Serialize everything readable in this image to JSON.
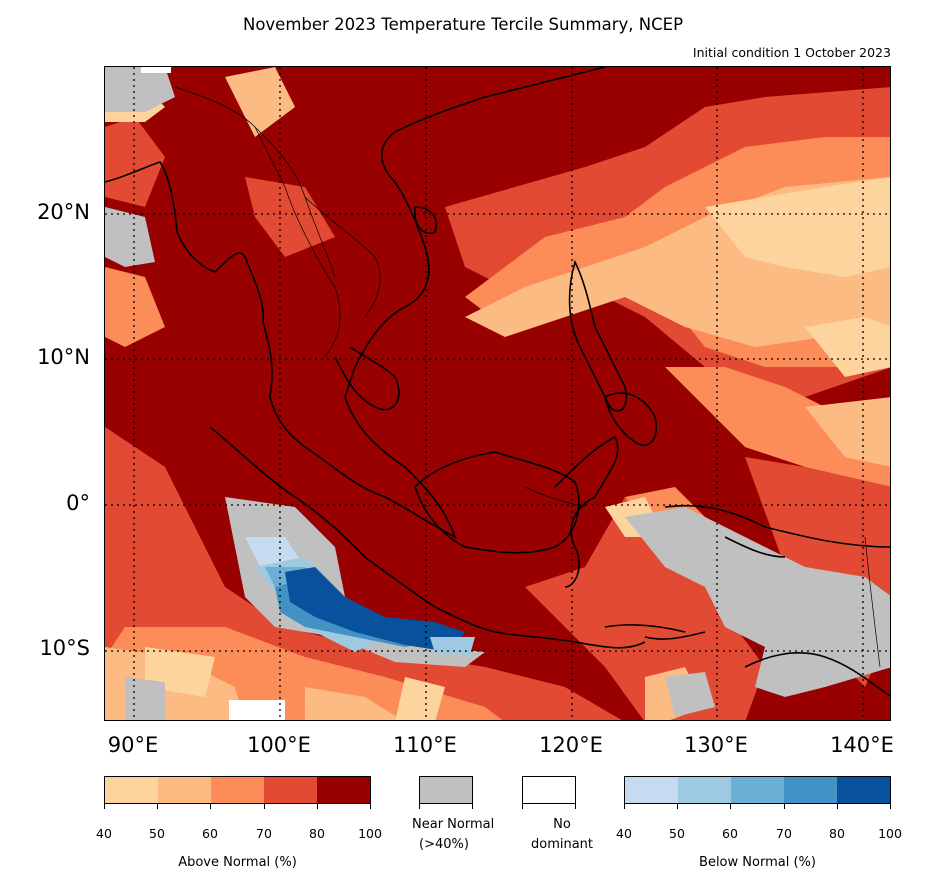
{
  "title": "November 2023 Temperature Tercile Summary, NCEP",
  "subtitle": "Initial condition 1 October 2023",
  "map": {
    "region": "Southeast Asia / Maritime Continent",
    "lat_labels": [
      "20°N",
      "10°N",
      "0°",
      "10°S"
    ],
    "lon_labels": [
      "90°E",
      "100°E",
      "110°E",
      "120°E",
      "130°E",
      "140°E"
    ],
    "lat_range": [
      -15,
      30
    ],
    "lon_range": [
      88,
      142
    ],
    "gridlines": "dotted"
  },
  "legend": {
    "above": {
      "title": "Above Normal (%)",
      "ticks": [
        "40",
        "50",
        "60",
        "70",
        "80",
        "100"
      ],
      "colors": [
        "#fdd49e",
        "#fdbb84",
        "#fc8d59",
        "#e34a33",
        "#990000"
      ]
    },
    "near": {
      "label_line1": "Near Normal",
      "label_line2": "(>40%)",
      "color": "#c0c0c0"
    },
    "none": {
      "label_line1": "No",
      "label_line2": "dominant",
      "color": "#ffffff"
    },
    "below": {
      "title": "Below Normal (%)",
      "ticks": [
        "40",
        "50",
        "60",
        "70",
        "80",
        "100"
      ],
      "colors": [
        "#c6dbef",
        "#9ecae1",
        "#6baed6",
        "#4292c6",
        "#08519c"
      ]
    }
  }
}
